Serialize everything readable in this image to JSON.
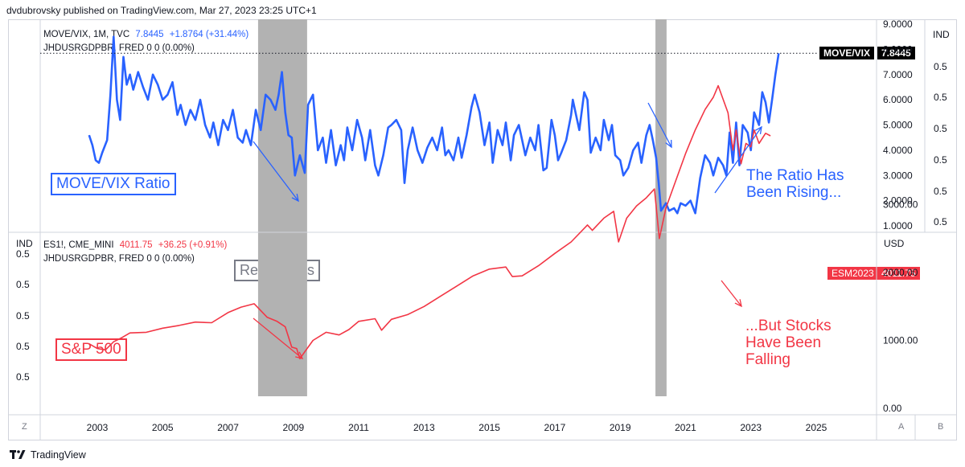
{
  "header": "dvdubrovsky published on TradingView.com, Mar 27, 2023 23:25 UTC+1",
  "footer": {
    "brand": "TradingView",
    "logo_icon": "tradingview-logo-icon"
  },
  "corners": {
    "bottom_left": "Z",
    "auto": "A",
    "bottom_right": "B"
  },
  "colors": {
    "move_vix": "#2962ff",
    "es": "#f23645",
    "recession": "#b2b2b2"
  },
  "top_pane": {
    "legend_line1": {
      "symbol": "MOVE/VIX, 1M, TVC",
      "value": "7.8445",
      "change": "+1.8764 (+31.44%)"
    },
    "legend_line2": "JHDUSRGDPBR, FRED  0  0 (0.00%)",
    "right_axis_header": "IND",
    "price_tag_label": "MOVE/VIX",
    "price_tag_value": "7.8445",
    "annotation_box": "MOVE/VIX Ratio",
    "annotation_text": "The Ratio Has\nBeen Rising..."
  },
  "bottom_pane": {
    "left_axis_header": "IND",
    "legend_line1": {
      "symbol": "ES1!, CME_MINI",
      "value": "4011.75",
      "change": "+36.25 (+0.91%)"
    },
    "legend_line2": "JHDUSRGDPBR, FRED  0  0 (0.00%)",
    "right_axis_header": "USD",
    "price_tag_label": "ESM2023",
    "price_tag_value": "4011.75",
    "annotation_box": "S&P 500",
    "annotation_text": "...But Stocks\nHave Been\nFalling",
    "recessions_label": "Recessions"
  },
  "chart_data": [
    {
      "type": "line",
      "title": "MOVE/VIX, 1M, TVC",
      "ylabel": "",
      "ylim": [
        1,
        9
      ],
      "y_ticks": [
        "1.0000",
        "2.0000",
        "3.0000",
        "4.0000",
        "5.0000",
        "6.0000",
        "7.0000",
        "8.0000",
        "9.0000"
      ],
      "ind_ticks": [
        "0.5",
        "0.5",
        "0.5",
        "0.5",
        "0.5",
        "0.5"
      ],
      "x_ticks": [
        "2003",
        "2005",
        "2007",
        "2009",
        "2011",
        "2013",
        "2015",
        "2017",
        "2019",
        "2021",
        "2023",
        "2025"
      ],
      "recessions": [
        [
          2007.92,
          2009.42
        ],
        [
          2020.08,
          2020.42
        ]
      ],
      "series": [
        {
          "name": "MOVE/VIX",
          "points": [
            [
              2002.75,
              4.6
            ],
            [
              2002.85,
              4.2
            ],
            [
              2002.95,
              3.6
            ],
            [
              2003.05,
              3.5
            ],
            [
              2003.15,
              3.9
            ],
            [
              2003.3,
              4.4
            ],
            [
              2003.4,
              6.2
            ],
            [
              2003.5,
              8.5
            ],
            [
              2003.6,
              6.0
            ],
            [
              2003.7,
              5.2
            ],
            [
              2003.8,
              7.7
            ],
            [
              2003.9,
              6.6
            ],
            [
              2004.0,
              7.0
            ],
            [
              2004.1,
              6.4
            ],
            [
              2004.25,
              7.1
            ],
            [
              2004.4,
              6.5
            ],
            [
              2004.55,
              6.0
            ],
            [
              2004.7,
              7.0
            ],
            [
              2004.85,
              6.6
            ],
            [
              2005.0,
              6.0
            ],
            [
              2005.15,
              6.2
            ],
            [
              2005.3,
              6.7
            ],
            [
              2005.45,
              5.4
            ],
            [
              2005.55,
              5.8
            ],
            [
              2005.7,
              5.0
            ],
            [
              2005.85,
              5.6
            ],
            [
              2006.0,
              5.2
            ],
            [
              2006.15,
              6.0
            ],
            [
              2006.3,
              5.0
            ],
            [
              2006.45,
              4.5
            ],
            [
              2006.55,
              5.1
            ],
            [
              2006.7,
              4.2
            ],
            [
              2006.85,
              5.2
            ],
            [
              2007.0,
              4.8
            ],
            [
              2007.15,
              5.6
            ],
            [
              2007.3,
              4.5
            ],
            [
              2007.45,
              4.3
            ],
            [
              2007.55,
              4.8
            ],
            [
              2007.7,
              4.2
            ],
            [
              2007.85,
              5.6
            ],
            [
              2008.0,
              4.8
            ],
            [
              2008.15,
              6.2
            ],
            [
              2008.3,
              6.0
            ],
            [
              2008.45,
              5.6
            ],
            [
              2008.55,
              6.2
            ],
            [
              2008.65,
              7.1
            ],
            [
              2008.75,
              5.5
            ],
            [
              2008.85,
              4.6
            ],
            [
              2008.95,
              4.5
            ],
            [
              2009.05,
              3.0
            ],
            [
              2009.2,
              3.8
            ],
            [
              2009.35,
              3.1
            ],
            [
              2009.45,
              5.8
            ],
            [
              2009.6,
              6.2
            ],
            [
              2009.75,
              4.0
            ],
            [
              2009.9,
              4.5
            ],
            [
              2010.0,
              3.5
            ],
            [
              2010.15,
              4.8
            ],
            [
              2010.3,
              3.4
            ],
            [
              2010.45,
              4.2
            ],
            [
              2010.55,
              3.6
            ],
            [
              2010.65,
              4.9
            ],
            [
              2010.8,
              4.0
            ],
            [
              2010.95,
              5.2
            ],
            [
              2011.1,
              4.5
            ],
            [
              2011.2,
              3.6
            ],
            [
              2011.35,
              4.8
            ],
            [
              2011.5,
              3.4
            ],
            [
              2011.6,
              3.0
            ],
            [
              2011.75,
              3.8
            ],
            [
              2011.9,
              4.9
            ],
            [
              2012.0,
              5.0
            ],
            [
              2012.15,
              5.2
            ],
            [
              2012.3,
              4.8
            ],
            [
              2012.4,
              2.7
            ],
            [
              2012.5,
              4.0
            ],
            [
              2012.65,
              4.9
            ],
            [
              2012.8,
              4.0
            ],
            [
              2012.95,
              3.5
            ],
            [
              2013.1,
              4.1
            ],
            [
              2013.25,
              4.5
            ],
            [
              2013.4,
              4.0
            ],
            [
              2013.55,
              4.9
            ],
            [
              2013.65,
              3.8
            ],
            [
              2013.75,
              4.0
            ],
            [
              2013.9,
              3.6
            ],
            [
              2014.05,
              4.5
            ],
            [
              2014.15,
              3.7
            ],
            [
              2014.3,
              4.6
            ],
            [
              2014.45,
              5.7
            ],
            [
              2014.55,
              6.2
            ],
            [
              2014.7,
              5.5
            ],
            [
              2014.85,
              4.2
            ],
            [
              2015.0,
              5.1
            ],
            [
              2015.1,
              3.5
            ],
            [
              2015.25,
              4.8
            ],
            [
              2015.4,
              4.2
            ],
            [
              2015.5,
              5.1
            ],
            [
              2015.65,
              3.6
            ],
            [
              2015.75,
              4.6
            ],
            [
              2015.9,
              5.0
            ],
            [
              2016.0,
              4.4
            ],
            [
              2016.1,
              3.8
            ],
            [
              2016.25,
              4.5
            ],
            [
              2016.4,
              4.0
            ],
            [
              2016.5,
              5.0
            ],
            [
              2016.65,
              3.2
            ],
            [
              2016.75,
              3.3
            ],
            [
              2016.9,
              5.2
            ],
            [
              2017.0,
              4.6
            ],
            [
              2017.1,
              3.6
            ],
            [
              2017.2,
              3.9
            ],
            [
              2017.35,
              4.4
            ],
            [
              2017.5,
              5.4
            ],
            [
              2017.55,
              6.0
            ],
            [
              2017.65,
              5.4
            ],
            [
              2017.75,
              4.8
            ],
            [
              2017.9,
              6.3
            ],
            [
              2018.0,
              6.0
            ],
            [
              2018.1,
              3.9
            ],
            [
              2018.25,
              4.5
            ],
            [
              2018.4,
              4.0
            ],
            [
              2018.5,
              5.2
            ],
            [
              2018.65,
              4.4
            ],
            [
              2018.75,
              5.0
            ],
            [
              2018.85,
              3.8
            ],
            [
              2019.0,
              3.6
            ],
            [
              2019.1,
              3.0
            ],
            [
              2019.25,
              3.3
            ],
            [
              2019.4,
              4.0
            ],
            [
              2019.55,
              4.3
            ],
            [
              2019.65,
              3.5
            ],
            [
              2019.8,
              4.6
            ],
            [
              2019.9,
              5.0
            ],
            [
              2020.0,
              4.4
            ],
            [
              2020.1,
              3.7
            ],
            [
              2020.18,
              2.7
            ],
            [
              2020.25,
              1.6
            ],
            [
              2020.4,
              1.9
            ],
            [
              2020.5,
              1.6
            ],
            [
              2020.65,
              1.7
            ],
            [
              2020.75,
              1.5
            ],
            [
              2020.85,
              1.9
            ],
            [
              2021.0,
              1.8
            ],
            [
              2021.15,
              2.0
            ],
            [
              2021.3,
              1.5
            ],
            [
              2021.45,
              2.9
            ],
            [
              2021.6,
              3.8
            ],
            [
              2021.75,
              3.5
            ],
            [
              2021.85,
              3.0
            ],
            [
              2022.0,
              3.7
            ],
            [
              2022.15,
              3.4
            ],
            [
              2022.25,
              3.0
            ],
            [
              2022.35,
              4.7
            ],
            [
              2022.45,
              3.5
            ],
            [
              2022.55,
              5.1
            ],
            [
              2022.65,
              3.4
            ],
            [
              2022.75,
              5.0
            ],
            [
              2022.9,
              4.7
            ],
            [
              2023.0,
              4.0
            ],
            [
              2023.1,
              5.5
            ],
            [
              2023.25,
              5.0
            ],
            [
              2023.35,
              6.3
            ],
            [
              2023.45,
              5.9
            ],
            [
              2023.55,
              5.1
            ],
            [
              2023.65,
              6.0
            ],
            [
              2023.75,
              7.0
            ],
            [
              2023.85,
              7.8445
            ]
          ]
        }
      ]
    },
    {
      "type": "line",
      "title": "ES1!, CME_MINI",
      "ylabel": "USD",
      "ylim": [
        0,
        4700
      ],
      "y_ticks": [
        "0.00",
        "1000.00",
        "2000.00",
        "3000.00"
      ],
      "ind_ticks": [
        "0.5",
        "0.5",
        "0.5",
        "0.5",
        "0.5"
      ],
      "x_ticks": [
        "2003",
        "2005",
        "2007",
        "2009",
        "2011",
        "2013",
        "2015",
        "2017",
        "2019",
        "2021",
        "2023",
        "2025"
      ],
      "recessions": [
        [
          2007.92,
          2009.42
        ],
        [
          2020.08,
          2020.42
        ]
      ],
      "series": [
        {
          "name": "ES1!",
          "points": [
            [
              2002.75,
              950
            ],
            [
              2003.0,
              880
            ],
            [
              2003.25,
              860
            ],
            [
              2003.5,
              980
            ],
            [
              2003.75,
              1040
            ],
            [
              2004.0,
              1110
            ],
            [
              2004.5,
              1120
            ],
            [
              2005.0,
              1180
            ],
            [
              2005.5,
              1220
            ],
            [
              2006.0,
              1270
            ],
            [
              2006.5,
              1260
            ],
            [
              2007.0,
              1410
            ],
            [
              2007.4,
              1490
            ],
            [
              2007.8,
              1540
            ],
            [
              2008.2,
              1340
            ],
            [
              2008.5,
              1280
            ],
            [
              2008.75,
              1200
            ],
            [
              2008.95,
              900
            ],
            [
              2009.1,
              880
            ],
            [
              2009.2,
              730
            ],
            [
              2009.3,
              800
            ],
            [
              2009.6,
              1000
            ],
            [
              2010.0,
              1120
            ],
            [
              2010.4,
              1080
            ],
            [
              2010.7,
              1160
            ],
            [
              2011.0,
              1280
            ],
            [
              2011.5,
              1320
            ],
            [
              2011.7,
              1150
            ],
            [
              2012.0,
              1310
            ],
            [
              2012.5,
              1380
            ],
            [
              2013.0,
              1500
            ],
            [
              2013.5,
              1650
            ],
            [
              2014.0,
              1800
            ],
            [
              2014.5,
              1950
            ],
            [
              2015.0,
              2050
            ],
            [
              2015.5,
              2080
            ],
            [
              2015.7,
              1940
            ],
            [
              2016.0,
              1950
            ],
            [
              2016.5,
              2100
            ],
            [
              2017.0,
              2280
            ],
            [
              2017.5,
              2450
            ],
            [
              2018.0,
              2700
            ],
            [
              2018.15,
              2620
            ],
            [
              2018.5,
              2800
            ],
            [
              2018.8,
              2900
            ],
            [
              2018.95,
              2450
            ],
            [
              2019.2,
              2800
            ],
            [
              2019.5,
              2980
            ],
            [
              2019.8,
              3100
            ],
            [
              2020.05,
              3230
            ],
            [
              2020.2,
              2500
            ],
            [
              2020.4,
              2950
            ],
            [
              2020.7,
              3350
            ],
            [
              2021.0,
              3750
            ],
            [
              2021.3,
              4100
            ],
            [
              2021.6,
              4400
            ],
            [
              2021.85,
              4580
            ],
            [
              2022.0,
              4750
            ],
            [
              2022.15,
              4550
            ],
            [
              2022.3,
              4350
            ],
            [
              2022.45,
              3800
            ],
            [
              2022.55,
              4100
            ],
            [
              2022.7,
              3600
            ],
            [
              2022.85,
              3900
            ],
            [
              2023.0,
              3850
            ],
            [
              2023.1,
              4100
            ],
            [
              2023.25,
              3900
            ],
            [
              2023.45,
              4050
            ],
            [
              2023.6,
              4011.75
            ]
          ]
        }
      ]
    }
  ]
}
